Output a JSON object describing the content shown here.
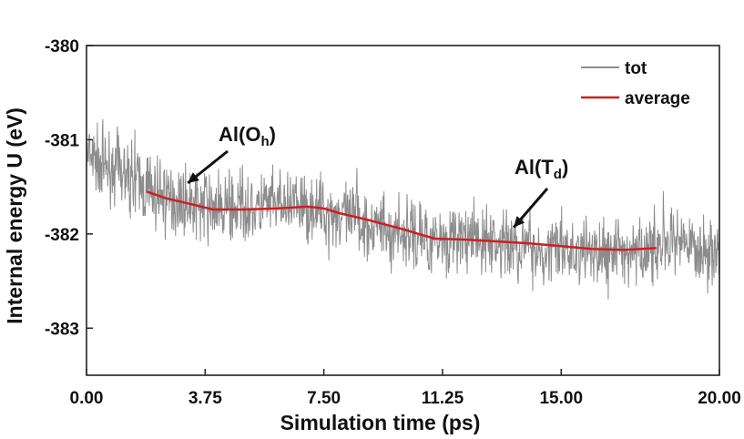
{
  "chart_data": {
    "type": "line",
    "xlabel": "Simulation time (ps)",
    "ylabel": "Internal energy U (eV)",
    "xlim": [
      0,
      20
    ],
    "ylim": [
      -383.5,
      -380
    ],
    "x_ticks": [
      0,
      3.75,
      7.5,
      11.25,
      15,
      20
    ],
    "x_tick_labels": [
      "0.00",
      "3.75",
      "7.50",
      "11.25",
      "15.00",
      "20.00"
    ],
    "y_ticks": [
      -380,
      -381,
      -382,
      -383
    ],
    "y_tick_labels": [
      "-380",
      "-381",
      "-382",
      "-383"
    ],
    "legend_position": "top-right",
    "grid": false,
    "series": [
      {
        "name": "tot",
        "color": "#8c8c8c",
        "style": "noisy fluctuation around average, amplitude about 0.35 eV",
        "x": [
          0,
          0.5,
          1.0,
          1.5,
          2.0,
          3.0,
          4.0,
          5.0,
          6.0,
          7.0,
          8.0,
          9.0,
          10.0,
          11.0,
          12.0,
          13.0,
          14.0,
          15.0,
          16.0,
          17.0,
          18.0,
          19.0,
          20.0
        ],
        "y": [
          -381.2,
          -381.25,
          -381.3,
          -381.45,
          -381.55,
          -381.65,
          -381.72,
          -381.72,
          -381.7,
          -381.72,
          -381.8,
          -381.9,
          -382.0,
          -382.05,
          -382.06,
          -382.1,
          -382.15,
          -382.18,
          -382.2,
          -382.18,
          -382.15,
          -382.15,
          -382.18
        ]
      },
      {
        "name": "average",
        "color": "#cc1f1f",
        "x": [
          1.9,
          2.5,
          3.0,
          3.5,
          4.0,
          5.0,
          6.0,
          7.0,
          7.5,
          8.0,
          9.0,
          10.0,
          10.5,
          11.0,
          12.0,
          13.0,
          14.0,
          15.0,
          16.0,
          17.0,
          18.0
        ],
        "y": [
          -381.55,
          -381.62,
          -381.66,
          -381.7,
          -381.74,
          -381.74,
          -381.73,
          -381.71,
          -381.73,
          -381.78,
          -381.86,
          -381.95,
          -382.0,
          -382.05,
          -382.06,
          -382.08,
          -382.1,
          -382.13,
          -382.16,
          -382.17,
          -382.15
        ]
      }
    ],
    "annotations": [
      {
        "label": "Al(O",
        "sub": "h",
        "suffix": ")",
        "arrow_x": 3.2,
        "arrow_y": -381.46
      },
      {
        "label": "Al(T",
        "sub": "d",
        "suffix": ")",
        "arrow_x": 13.5,
        "arrow_y": -381.93
      }
    ]
  }
}
